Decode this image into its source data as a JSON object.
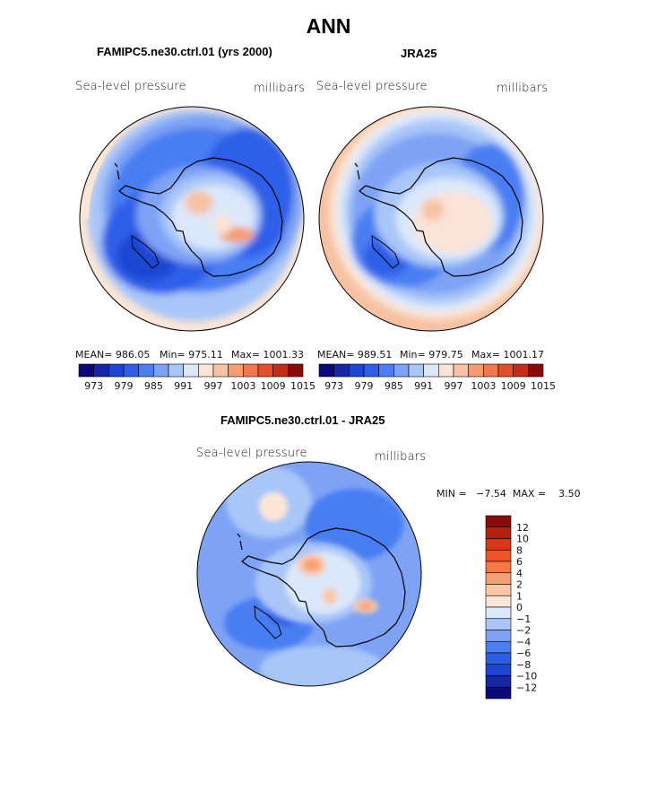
{
  "figure": {
    "title": "ANN",
    "colors": {
      "land_outline": "#000000",
      "map_border": "#000000"
    }
  },
  "chart_data": [
    {
      "type": "heatmap",
      "title": "FAMIPC5.ne30.ctrl.01 (yrs 2000)",
      "left_label": "Sea-level pressure",
      "right_label": "millibars",
      "projection": "south-polar stereographic",
      "stats": {
        "mean": "986.05",
        "min": "975.11",
        "max": "1001.33"
      },
      "stats_text": {
        "mean": "MEAN= 986.05",
        "min": "Min= 975.11",
        "max": "Max= 1001.33"
      },
      "colorbar": {
        "orientation": "horizontal",
        "levels": [
          973,
          976,
          979,
          982,
          985,
          988,
          991,
          994,
          997,
          1000,
          1003,
          1006,
          1009,
          1012,
          1015
        ],
        "tick_labels": [
          "973",
          "979",
          "985",
          "991",
          "997",
          "1003",
          "1009",
          "1015"
        ],
        "colors": [
          "#0a0a7a",
          "#1626a8",
          "#1f46d2",
          "#2d5ee8",
          "#4a7ef2",
          "#7ea3f5",
          "#a8c6f8",
          "#dbe8fb",
          "#fbe3d6",
          "#f7c2a3",
          "#f59c75",
          "#f2774f",
          "#e64d2b",
          "#c42d16",
          "#8b0a0a"
        ]
      }
    },
    {
      "type": "heatmap",
      "title": "JRA25",
      "left_label": "Sea-level pressure",
      "right_label": "millibars",
      "projection": "south-polar stereographic",
      "stats": {
        "mean": "989.51",
        "min": "979.75",
        "max": "1001.17"
      },
      "stats_text": {
        "mean": "MEAN= 989.51",
        "min": "Min= 979.75",
        "max": "Max= 1001.17"
      },
      "colorbar": {
        "orientation": "horizontal",
        "levels": [
          973,
          976,
          979,
          982,
          985,
          988,
          991,
          994,
          997,
          1000,
          1003,
          1006,
          1009,
          1012,
          1015
        ],
        "tick_labels": [
          "973",
          "979",
          "985",
          "991",
          "997",
          "1003",
          "1009",
          "1015"
        ],
        "colors": [
          "#0a0a7a",
          "#1626a8",
          "#1f46d2",
          "#2d5ee8",
          "#4a7ef2",
          "#7ea3f5",
          "#a8c6f8",
          "#dbe8fb",
          "#fbe3d6",
          "#f7c2a3",
          "#f59c75",
          "#f2774f",
          "#e64d2b",
          "#c42d16",
          "#8b0a0a"
        ]
      }
    },
    {
      "type": "heatmap",
      "title": "FAMIPC5.ne30.ctrl.01 - JRA25",
      "left_label": "Sea-level pressure",
      "right_label": "millibars",
      "projection": "south-polar stereographic",
      "stats": {
        "min": "-7.54",
        "max": "3.50"
      },
      "stats_text": "MIN =   −7.54  MAX =    3.50",
      "colorbar": {
        "orientation": "vertical",
        "tick_labels": [
          "12",
          "10",
          "8",
          "6",
          "4",
          "2",
          "1",
          "0",
          "−1",
          "−2",
          "−4",
          "−6",
          "−8",
          "−10",
          "−12"
        ],
        "colors": [
          "#8b0a0a",
          "#b3220f",
          "#d8381a",
          "#ef5428",
          "#f77643",
          "#f89e75",
          "#fbc7a6",
          "#fbe6d6",
          "#dbe8fb",
          "#a8c6f8",
          "#7ea3f5",
          "#4a7ef2",
          "#2d5ee8",
          "#1f46d2",
          "#1626a8",
          "#0a0a7a"
        ]
      }
    }
  ]
}
